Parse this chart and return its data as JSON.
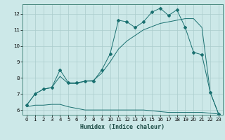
{
  "xlabel": "Humidex (Indice chaleur)",
  "bg_color": "#cce8e8",
  "grid_color": "#aacccc",
  "line_color": "#1a7070",
  "xlim": [
    -0.5,
    23.5
  ],
  "ylim": [
    5.7,
    12.6
  ],
  "yticks": [
    6,
    7,
    8,
    9,
    10,
    11,
    12
  ],
  "xticks": [
    0,
    1,
    2,
    3,
    4,
    5,
    6,
    7,
    8,
    9,
    10,
    11,
    12,
    13,
    14,
    15,
    16,
    17,
    18,
    19,
    20,
    21,
    22,
    23
  ],
  "line1_x": [
    0,
    1,
    2,
    3,
    4,
    5,
    6,
    7,
    8,
    9,
    10,
    11,
    12,
    13,
    14,
    15,
    16,
    17,
    18,
    19,
    20,
    21,
    22,
    23
  ],
  "line1_y": [
    6.3,
    7.0,
    7.3,
    7.4,
    8.5,
    7.7,
    7.7,
    7.8,
    7.8,
    8.5,
    9.5,
    11.6,
    11.5,
    11.15,
    11.5,
    12.1,
    12.35,
    11.9,
    12.25,
    11.15,
    9.6,
    9.45,
    7.1,
    5.75
  ],
  "line2_x": [
    0,
    1,
    2,
    3,
    4,
    5,
    6,
    7,
    8,
    9,
    10,
    11,
    12,
    13,
    14,
    15,
    16,
    17,
    18,
    19,
    20,
    21,
    22,
    23
  ],
  "line2_y": [
    6.3,
    7.0,
    7.3,
    7.4,
    8.1,
    7.65,
    7.65,
    7.8,
    7.85,
    8.3,
    9.0,
    9.8,
    10.3,
    10.65,
    11.0,
    11.2,
    11.4,
    11.5,
    11.6,
    11.7,
    11.7,
    11.15,
    7.1,
    5.75
  ],
  "line3_x": [
    0,
    1,
    2,
    3,
    4,
    5,
    6,
    7,
    8,
    9,
    10,
    11,
    12,
    13,
    14,
    15,
    16,
    17,
    18,
    19,
    20,
    21,
    22,
    23
  ],
  "line3_y": [
    6.2,
    6.3,
    6.3,
    6.35,
    6.35,
    6.2,
    6.1,
    6.0,
    6.0,
    6.0,
    6.0,
    6.0,
    6.0,
    6.0,
    6.0,
    5.95,
    5.9,
    5.85,
    5.85,
    5.85,
    5.85,
    5.85,
    5.8,
    5.75
  ]
}
